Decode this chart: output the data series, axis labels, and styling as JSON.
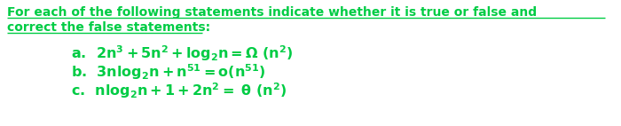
{
  "bg_color": "#ffffff",
  "text_color": "#00cc44",
  "title_line1": "For each of the following statements indicate whether it is true or false and",
  "title_line2": "correct the false statements:",
  "line_a": "a.  $\\mathbf{2n^3 +5n^2 +log_2n = \\Omega\\ (n^2)}$",
  "line_b": "b.  $\\mathbf{3nlog_2n +n^{51} = o(n^{51})}$",
  "line_c": "c.  $\\mathbf{nlog_2n +1 +2n^2=\\ \\theta\\ (n^2)}$",
  "title_fontsize": 10.0,
  "body_fontsize": 11.5,
  "figsize": [
    7.0,
    1.42
  ],
  "dpi": 100
}
